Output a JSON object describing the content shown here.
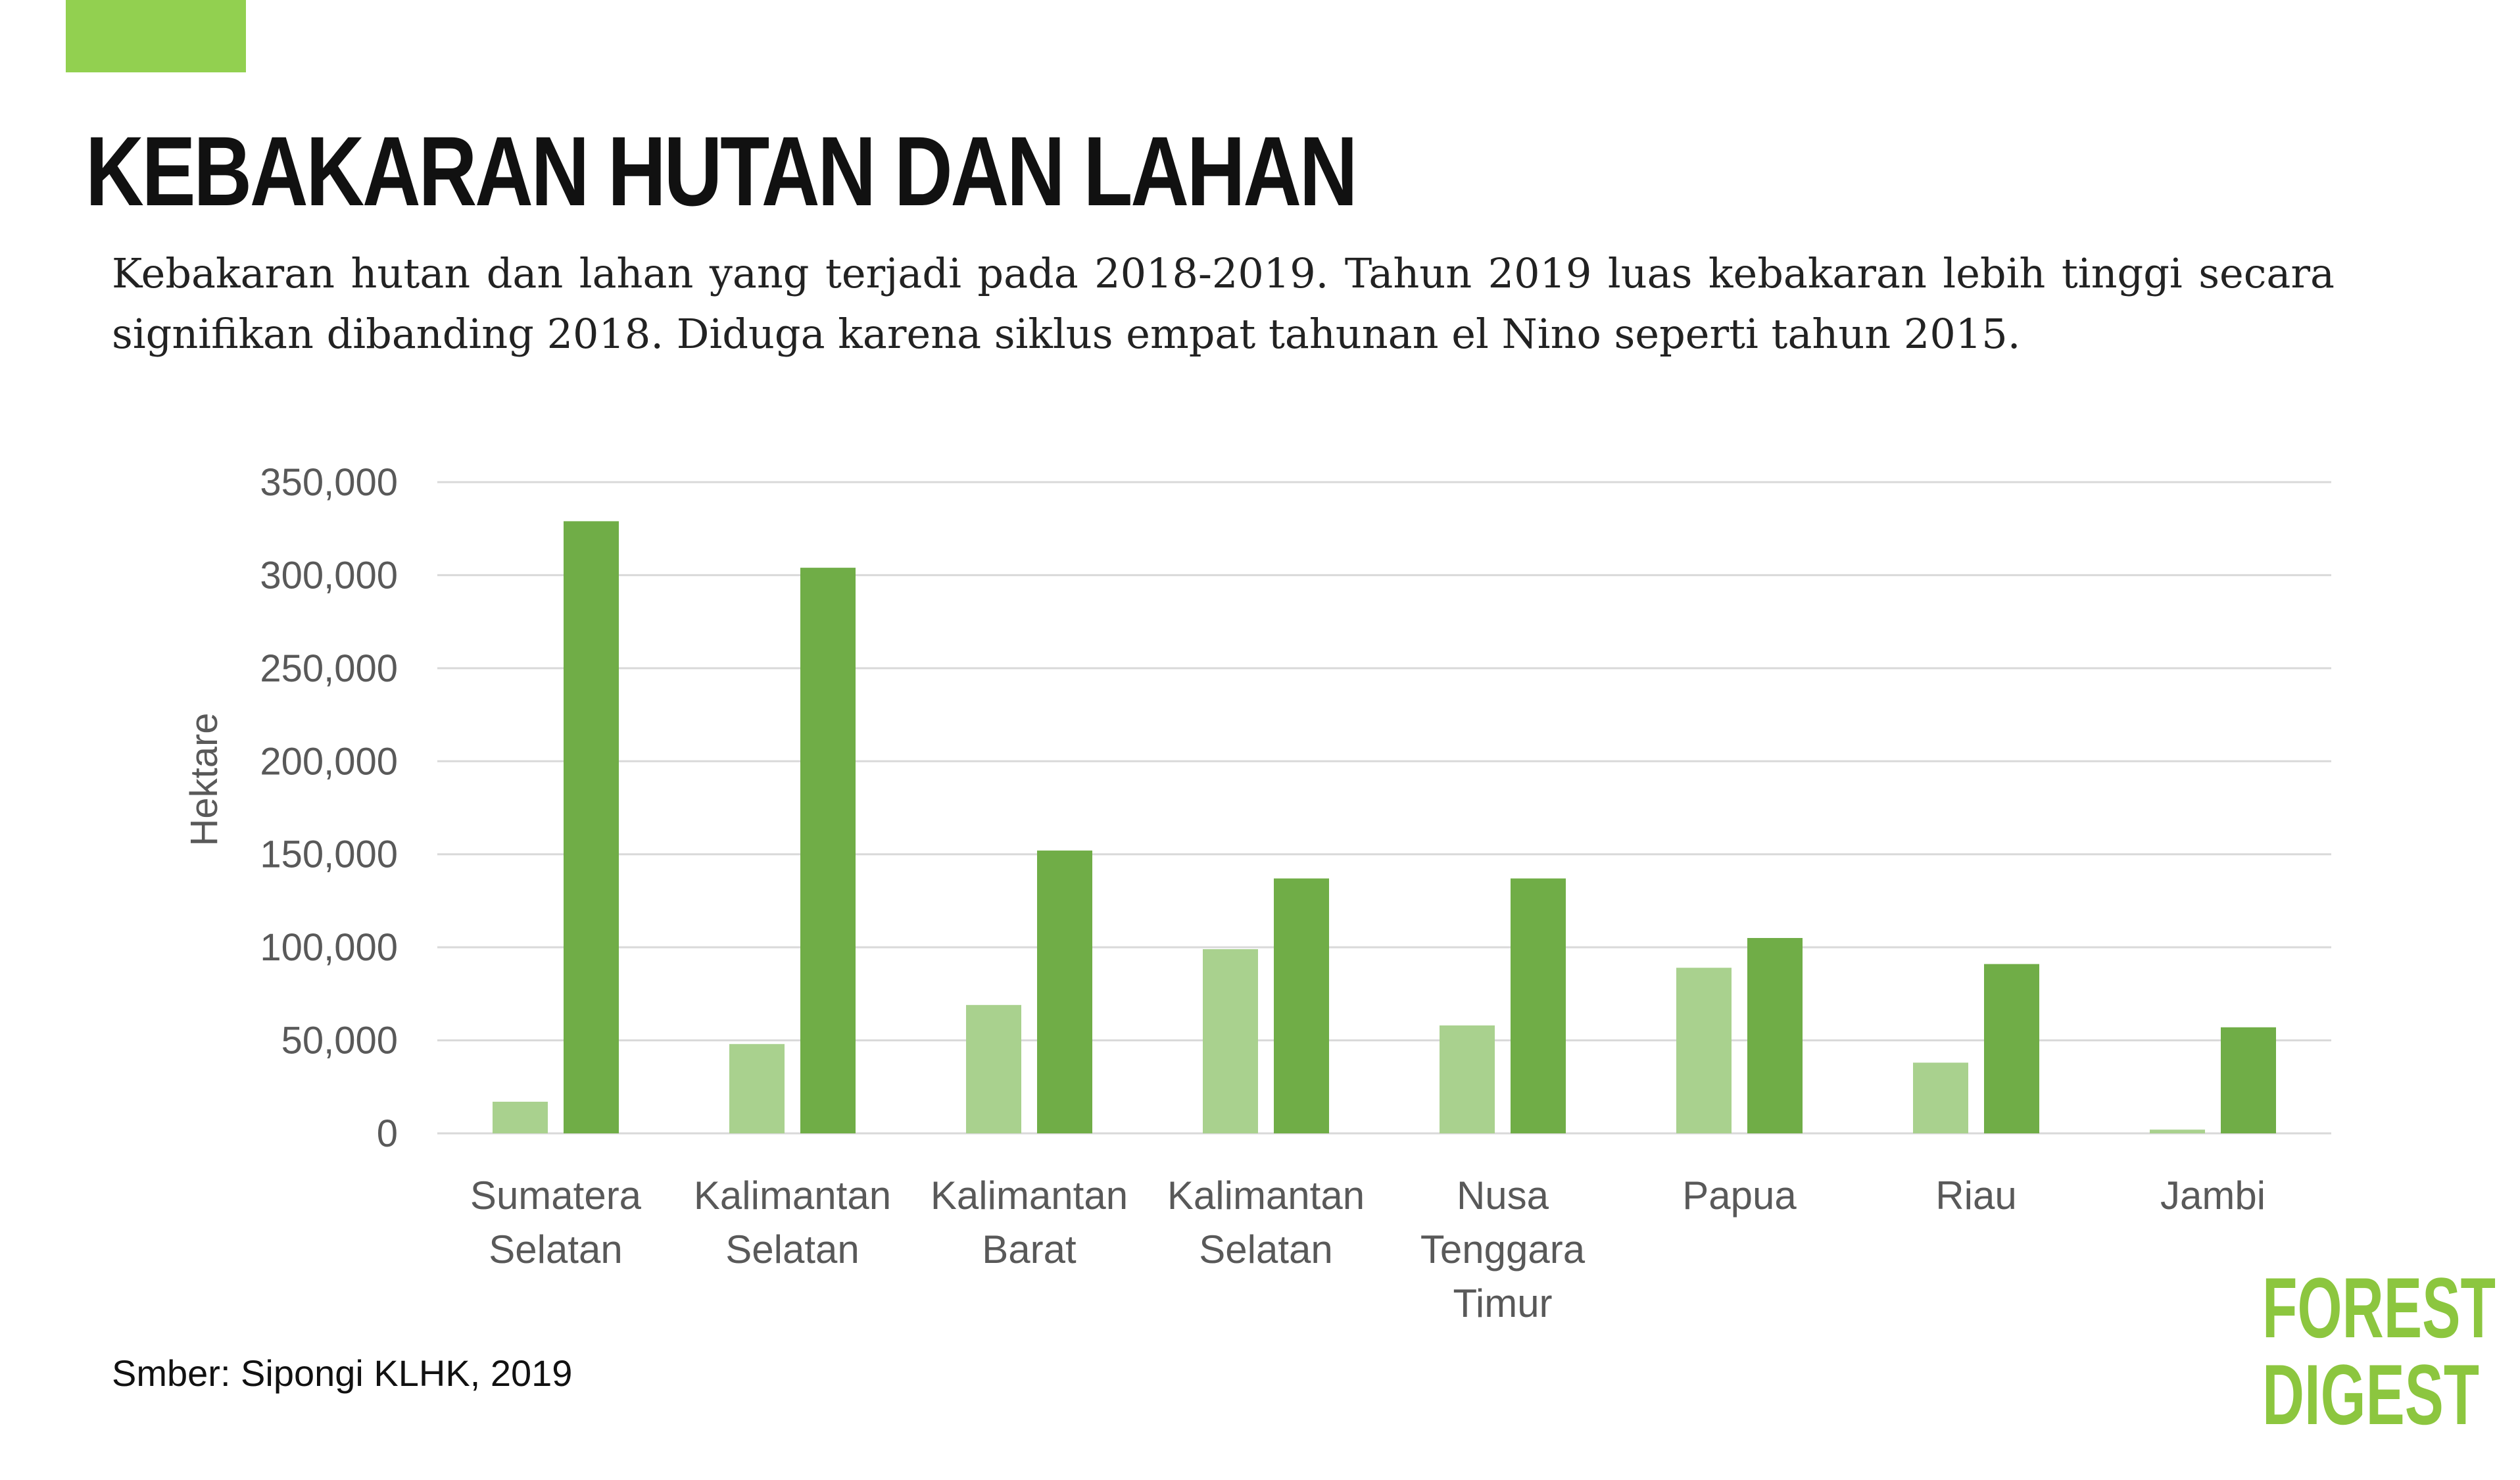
{
  "header": {
    "title": "KEBAKARAN HUTAN DAN LAHAN",
    "description": "Kebakaran hutan dan lahan yang terjadi pada 2018-2019. Tahun 2019 luas kebakaran lebih tinggi secara signifikan dibanding 2018. Diduga karena siklus empat tahunan el Nino seperti tahun 2015."
  },
  "colors": {
    "accent": "#92d050",
    "series_2018": "#a9d18e",
    "series_2019": "#70ad47",
    "grid": "#d9d9d9",
    "axis_text": "#595959",
    "logo": "#8cc63f"
  },
  "chart_data": {
    "type": "bar",
    "categories": [
      [
        "Sumatera",
        "Selatan"
      ],
      [
        "Kalimantan",
        "Selatan"
      ],
      [
        "Kalimantan",
        "Barat"
      ],
      [
        "Kalimantan",
        "Selatan"
      ],
      [
        "Nusa",
        "Tenggara",
        "Timur"
      ],
      [
        "Papua"
      ],
      [
        "Riau"
      ],
      [
        "Jambi"
      ]
    ],
    "series": [
      {
        "values": [
          17000,
          48000,
          69000,
          99000,
          58000,
          89000,
          38000,
          2000
        ]
      },
      {
        "values": [
          329000,
          304000,
          152000,
          137000,
          137000,
          105000,
          91000,
          57000
        ]
      }
    ],
    "ylabel": "Hektare",
    "ylim": [
      0,
      350000
    ],
    "yticks": [
      "0",
      "50,000",
      "100,000",
      "150,000",
      "200,000",
      "250,000",
      "300,000",
      "350,000"
    ],
    "grid": true,
    "legend": "none"
  },
  "footer": {
    "source": "Smber: Sipongi KLHK, 2019"
  },
  "logo": {
    "line1": "FOREST",
    "line2": "DIGEST"
  }
}
